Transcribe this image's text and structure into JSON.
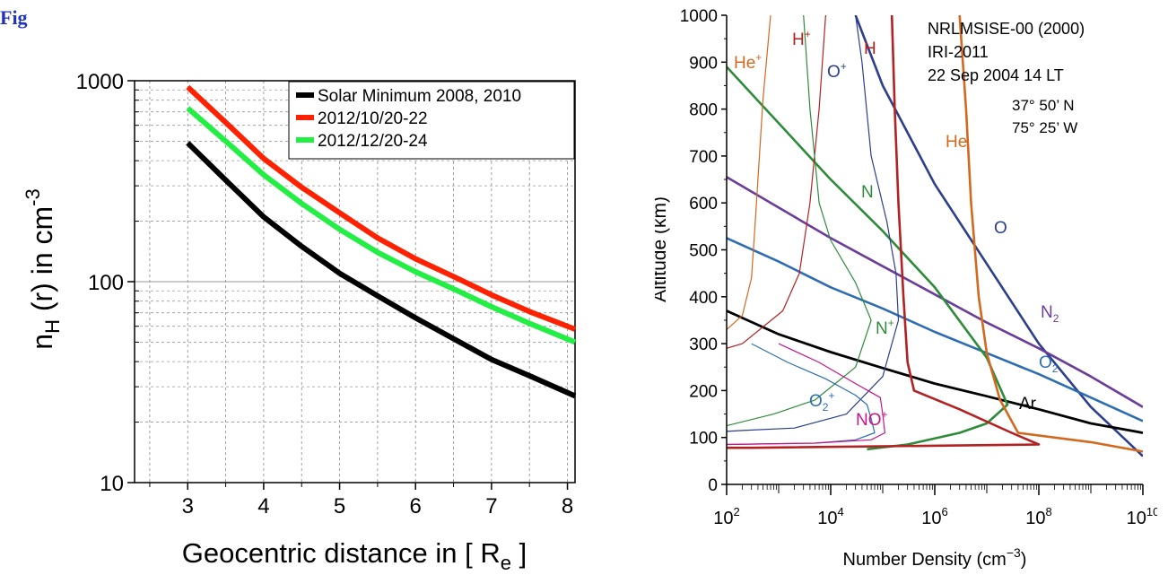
{
  "page": {
    "corner_label": "Fig"
  },
  "chart_data": [
    {
      "type": "line",
      "title": "",
      "xlabel": "Geocentric distance in [ R",
      "xlabel_sub": "e",
      "xlabel_tail": " ]",
      "ylabel": "n",
      "ylabel_sub": "H",
      "ylabel_mid": " (r) in cm",
      "ylabel_sup": "-3",
      "xlim": [
        2.3,
        8.1
      ],
      "ylim": [
        10,
        1000
      ],
      "y_scale": "log",
      "x_ticks": [
        3,
        4,
        5,
        6,
        7,
        8
      ],
      "y_ticks": [
        10,
        100,
        1000
      ],
      "grid": true,
      "legend": "top-right",
      "series": [
        {
          "name": "Solar Minimum 2008, 2010",
          "color": "#000000",
          "x": [
            3,
            3.5,
            4,
            4.5,
            5,
            5.5,
            6,
            6.5,
            7,
            7.5,
            8.1
          ],
          "y": [
            490,
            320,
            210,
            150,
            110,
            85,
            66,
            52,
            41,
            34,
            27
          ]
        },
        {
          "name": "2012/10/20-22",
          "color": "#ff2200",
          "x": [
            3,
            3.5,
            4,
            4.5,
            5,
            5.5,
            6,
            6.5,
            7,
            7.5,
            8.1
          ],
          "y": [
            930,
            620,
            410,
            295,
            220,
            165,
            130,
            106,
            86,
            71,
            58
          ]
        },
        {
          "name": "2012/12/20-24",
          "color": "#22ee44",
          "x": [
            3,
            3.5,
            4,
            4.5,
            5,
            5.5,
            6,
            6.5,
            7,
            7.5,
            8.1
          ],
          "y": [
            730,
            500,
            340,
            245,
            182,
            140,
            112,
            92,
            75,
            62,
            50
          ]
        }
      ]
    },
    {
      "type": "line",
      "title": "",
      "xlabel": "Number Density (cm",
      "xlabel_sup": "−3",
      "xlabel_tail": ")",
      "ylabel": "Altitude (km)",
      "xlim": [
        100,
        10000000000
      ],
      "ylim": [
        0,
        1000
      ],
      "x_scale": "log",
      "x_ticks": [
        100,
        10000,
        1000000,
        100000000,
        10000000000
      ],
      "x_tick_base": "10",
      "x_tick_exps": [
        "2",
        "4",
        "6",
        "8",
        "10"
      ],
      "y_ticks": [
        0,
        100,
        200,
        300,
        400,
        500,
        600,
        700,
        800,
        900,
        1000
      ],
      "annotations": [
        "NRLMSISE-00 (2000)",
        "IRI-2011",
        "22 Sep 2004  14 LT",
        "37° 50’ N",
        "75° 25’ W"
      ],
      "series": [
        {
          "name": "O",
          "label": "O",
          "color": "#2c3e8c",
          "points": [
            [
              30000,
              1000
            ],
            [
              100000,
              850
            ],
            [
              1000000,
              640
            ],
            [
              10000000,
              470
            ],
            [
              100000000,
              300
            ],
            [
              1000000000,
              165
            ],
            [
              10000000000,
              60
            ]
          ]
        },
        {
          "name": "N2",
          "label": "N",
          "label_sub": "2",
          "color": "#6a3d9a",
          "points": [
            [
              100,
              655
            ],
            [
              1000,
              590
            ],
            [
              10000,
              525
            ],
            [
              100000,
              465
            ],
            [
              1000000,
              405
            ],
            [
              10000000,
              345
            ],
            [
              100000000,
              290
            ],
            [
              1000000000,
              230
            ],
            [
              10000000000,
              165
            ]
          ]
        },
        {
          "name": "O2",
          "label": "O",
          "label_sub": "2",
          "color": "#2f6db3",
          "points": [
            [
              100,
              525
            ],
            [
              1000,
              475
            ],
            [
              10000,
              420
            ],
            [
              100000,
              375
            ],
            [
              1000000,
              325
            ],
            [
              10000000,
              280
            ],
            [
              100000000,
              235
            ],
            [
              1000000000,
              185
            ],
            [
              10000000000,
              135
            ]
          ]
        },
        {
          "name": "Ar",
          "label": "Ar",
          "color": "#000000",
          "points": [
            [
              100,
              370
            ],
            [
              1000,
              320
            ],
            [
              10000,
              282
            ],
            [
              100000,
              248
            ],
            [
              1000000,
              215
            ],
            [
              10000000,
              188
            ],
            [
              100000000,
              160
            ],
            [
              1000000000,
              130
            ],
            [
              10000000000,
              110
            ]
          ]
        },
        {
          "name": "N",
          "label": "N",
          "color": "#2e8b3a",
          "points": [
            [
              100,
              890
            ],
            [
              1000,
              770
            ],
            [
              10000,
              650
            ],
            [
              100000,
              540
            ],
            [
              1000000,
              420
            ],
            [
              10000000,
              270
            ],
            [
              25000000,
              170
            ],
            [
              10000000,
              130
            ],
            [
              3000000,
              110
            ],
            [
              300000,
              85
            ],
            [
              50000,
              75
            ]
          ]
        },
        {
          "name": "He",
          "label": "He",
          "color": "#d2691e",
          "points": [
            [
              3000000,
              1000
            ],
            [
              4000000,
              800
            ],
            [
              5000000,
              600
            ],
            [
              7000000,
              400
            ],
            [
              10000000,
              280
            ],
            [
              18000000,
              180
            ],
            [
              40000000,
              110
            ],
            [
              1000000000,
              90
            ],
            [
              10000000000,
              70
            ]
          ]
        },
        {
          "name": "H",
          "label": "H",
          "color": "#b22222",
          "points": [
            [
              150000,
              1000
            ],
            [
              170000,
              800
            ],
            [
              200000,
              600
            ],
            [
              250000,
              400
            ],
            [
              300000,
              260
            ],
            [
              400000,
              200
            ],
            [
              3000000,
              160
            ],
            [
              30000000,
              110
            ],
            [
              100000000,
              85
            ],
            [
              300,
              78
            ],
            [
              100,
              78
            ]
          ]
        },
        {
          "name": "He+",
          "label": "He",
          "label_sup": "+",
          "color": "#d2691e",
          "points": [
            [
              700,
              1000
            ],
            [
              500,
              820
            ],
            [
              400,
              650
            ],
            [
              350,
              550
            ],
            [
              300,
              440
            ],
            [
              200,
              360
            ],
            [
              100,
              330
            ]
          ]
        },
        {
          "name": "H+",
          "label": "H",
          "label_sup": "+",
          "color": "#b22222",
          "points": [
            [
              8000,
              1000
            ],
            [
              6000,
              800
            ],
            [
              4000,
              600
            ],
            [
              2500,
              450
            ],
            [
              1200,
              370
            ],
            [
              200,
              300
            ],
            [
              100,
              290
            ]
          ]
        },
        {
          "name": "O+",
          "label": "O",
          "label_sup": "+",
          "color": "#2c3e8c",
          "points": [
            [
              30000,
              1000
            ],
            [
              40000,
              900
            ],
            [
              60000,
              700
            ],
            [
              120000,
              560
            ],
            [
              180000,
              450
            ],
            [
              200000,
              350
            ],
            [
              100000,
              230
            ],
            [
              20000,
              150
            ],
            [
              2000,
              120
            ],
            [
              200,
              115
            ],
            [
              100,
              113
            ]
          ]
        },
        {
          "name": "N+",
          "label": "N",
          "label_sup": "+",
          "color": "#2e8b3a",
          "points": [
            [
              3000,
              1000
            ],
            [
              4000,
              800
            ],
            [
              6000,
              600
            ],
            [
              10000,
              520
            ],
            [
              30000,
              430
            ],
            [
              60000,
              350
            ],
            [
              30000,
              250
            ],
            [
              5000,
              180
            ],
            [
              800,
              150
            ],
            [
              100,
              125
            ]
          ]
        },
        {
          "name": "O2+",
          "label": "O",
          "label_sub": "2",
          "label_sup": "+",
          "color": "#2f6db3",
          "points": [
            [
              300,
              300
            ],
            [
              1500,
              260
            ],
            [
              8000,
              225
            ],
            [
              30000,
              190
            ],
            [
              50000,
              170
            ],
            [
              60000,
              140
            ],
            [
              70000,
              110
            ],
            [
              30000,
              95
            ],
            [
              5000,
              88
            ],
            [
              100,
              85
            ]
          ]
        },
        {
          "name": "NO+",
          "label": "NO",
          "label_sup": "+",
          "color": "#c71585",
          "points": [
            [
              1000,
              300
            ],
            [
              6000,
              260
            ],
            [
              30000,
              215
            ],
            [
              90000,
              185
            ],
            [
              100000,
              150
            ],
            [
              110000,
              110
            ],
            [
              60000,
              95
            ],
            [
              5000,
              88
            ],
            [
              100,
              85
            ]
          ]
        }
      ]
    }
  ]
}
